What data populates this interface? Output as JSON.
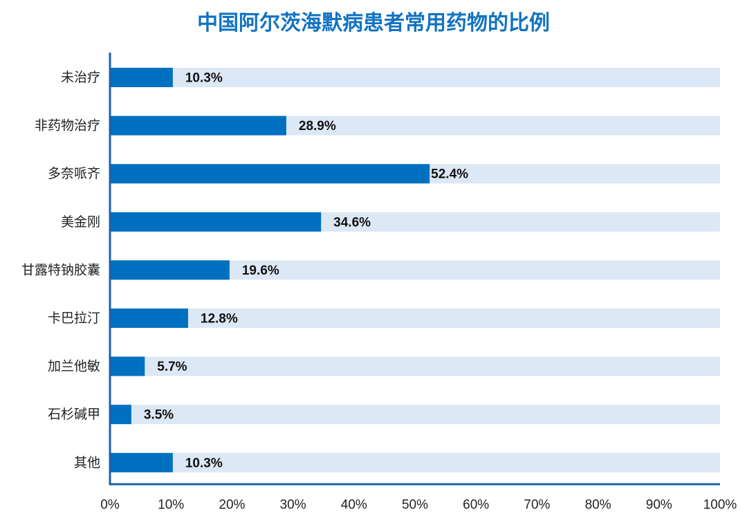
{
  "chart_data": {
    "type": "bar",
    "orientation": "horizontal",
    "title": "中国阿尔茨海默病患者常用药物的比例",
    "categories": [
      "未治疗",
      "非药物治疗",
      "多奈哌齐",
      "美金刚",
      "甘露特钠胶囊",
      "卡巴拉汀",
      "加兰他敏",
      "石杉碱甲",
      "其他"
    ],
    "values": [
      10.3,
      28.9,
      52.4,
      34.6,
      19.6,
      12.8,
      5.7,
      3.5,
      10.3
    ],
    "value_labels": [
      "10.3%",
      "28.9%",
      "52.4%",
      "34.6%",
      "19.6%",
      "12.8%",
      "5.7%",
      "3.5%",
      "10.3%"
    ],
    "xlim": [
      0,
      100
    ],
    "x_ticks": [
      "0%",
      "10%",
      "20%",
      "30%",
      "40%",
      "50%",
      "60%",
      "70%",
      "80%",
      "90%",
      "100%"
    ],
    "xlabel": "",
    "ylabel": "",
    "grid": false,
    "legend": "none",
    "colors": {
      "bar": "#0070c0",
      "track": "#dce8f5",
      "axis": "#1f5fa8",
      "title": "#1273c2"
    }
  }
}
